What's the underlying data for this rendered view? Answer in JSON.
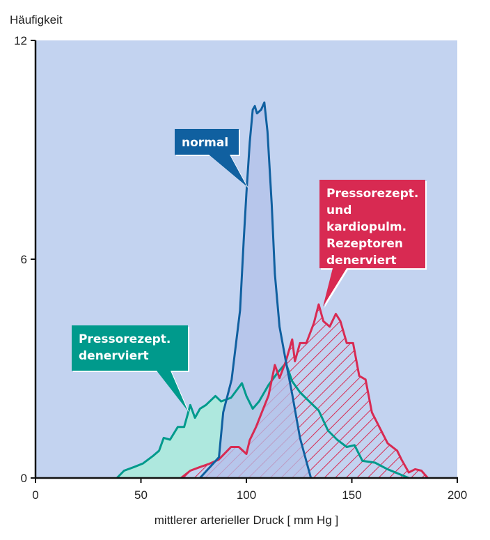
{
  "chart_data": {
    "type": "area",
    "title": "",
    "xlabel": "mittlerer arterieller Druck [ mm Hg ]",
    "ylabel": "Häufigkeit",
    "xlim": [
      0,
      200
    ],
    "ylim": [
      0,
      12
    ],
    "xticks": [
      "0",
      "50",
      "100",
      "150",
      "200"
    ],
    "yticks": [
      "0",
      "6",
      "12"
    ],
    "grid": false,
    "background": "#c3d3f0",
    "series": [
      {
        "name": "Pressorezept. denerviert",
        "color": "#009a8c",
        "fill": "#aee8de",
        "x": [
          38.6,
          42,
          46.7,
          51,
          55.6,
          58.6,
          60.8,
          63.8,
          67.5,
          70.5,
          73.4,
          75.6,
          78,
          80.8,
          85.3,
          88,
          92.7,
          97.9,
          100,
          103,
          106,
          110.5,
          115,
          118.7,
          121.7,
          125.4,
          129.8,
          134.3,
          138.7,
          143,
          147.6,
          151.3,
          155,
          161,
          166.9,
          172.8,
          177
        ],
        "y": [
          0,
          0.2,
          0.3,
          0.4,
          0.6,
          0.75,
          1.1,
          1.05,
          1.4,
          1.4,
          2,
          1.65,
          1.9,
          2,
          2.25,
          2.1,
          2.2,
          2.6,
          2.25,
          1.9,
          2.1,
          2.55,
          2.9,
          3.15,
          2.65,
          2.35,
          2.1,
          1.85,
          1.3,
          1.05,
          0.85,
          0.9,
          0.47,
          0.42,
          0.24,
          0.1,
          0
        ]
      },
      {
        "name": "Pressorezept. und kardiopulm. Rezeptoren denerviert",
        "color": "#d82a52",
        "fill": "hatch",
        "x": [
          69,
          73.4,
          78,
          82,
          86.8,
          92.7,
          96.4,
          100,
          101.6,
          104.6,
          107.6,
          110.5,
          113.5,
          115.7,
          118.7,
          121.7,
          123,
          125.4,
          128.4,
          132,
          134.3,
          136.5,
          139.5,
          142.4,
          144.6,
          147.6,
          150.6,
          153.5,
          156.5,
          159.5,
          163,
          167,
          171.5,
          173.6,
          177,
          180,
          183,
          186
        ],
        "y": [
          0,
          0.2,
          0.3,
          0.38,
          0.5,
          0.85,
          0.85,
          0.66,
          1.04,
          1.4,
          1.84,
          2.26,
          3.1,
          2.74,
          3.2,
          3.8,
          3.2,
          3.7,
          3.7,
          4.25,
          4.76,
          4.3,
          4.15,
          4.5,
          4.3,
          3.7,
          3.7,
          2.8,
          2.7,
          1.8,
          1.4,
          0.95,
          0.75,
          0.5,
          0.15,
          0.24,
          0.2,
          0
        ]
      },
      {
        "name": "normal",
        "color": "#1060a0",
        "fill": "#b3c2ea",
        "x": [
          78,
          87,
          89,
          93,
          97,
          98.7,
          100,
          101.6,
          103,
          104,
          105,
          107,
          108.5,
          110,
          112,
          113.5,
          115.7,
          118.7,
          121.7,
          125.4,
          130.6
        ],
        "y": [
          0,
          0.57,
          1.8,
          2.7,
          4.6,
          6.5,
          7.8,
          9.2,
          10.1,
          10.2,
          10,
          10.1,
          10.3,
          9.5,
          7.5,
          5.6,
          4.15,
          3.2,
          2.3,
          1.1,
          0
        ]
      }
    ],
    "annotations": [
      {
        "text": [
          "normal"
        ],
        "color": "#1060a0",
        "series": "normal"
      },
      {
        "text": [
          "Pressorezept.",
          "denerviert"
        ],
        "color": "#009a8c",
        "series": "Pressorezept. denerviert"
      },
      {
        "text": [
          "Pressorezept.",
          "und",
          "kardiopulm.",
          "Rezeptoren",
          "denerviert"
        ],
        "color": "#d82a52",
        "series": "Pressorezept. und kardiopulm. Rezeptoren denerviert"
      }
    ]
  }
}
